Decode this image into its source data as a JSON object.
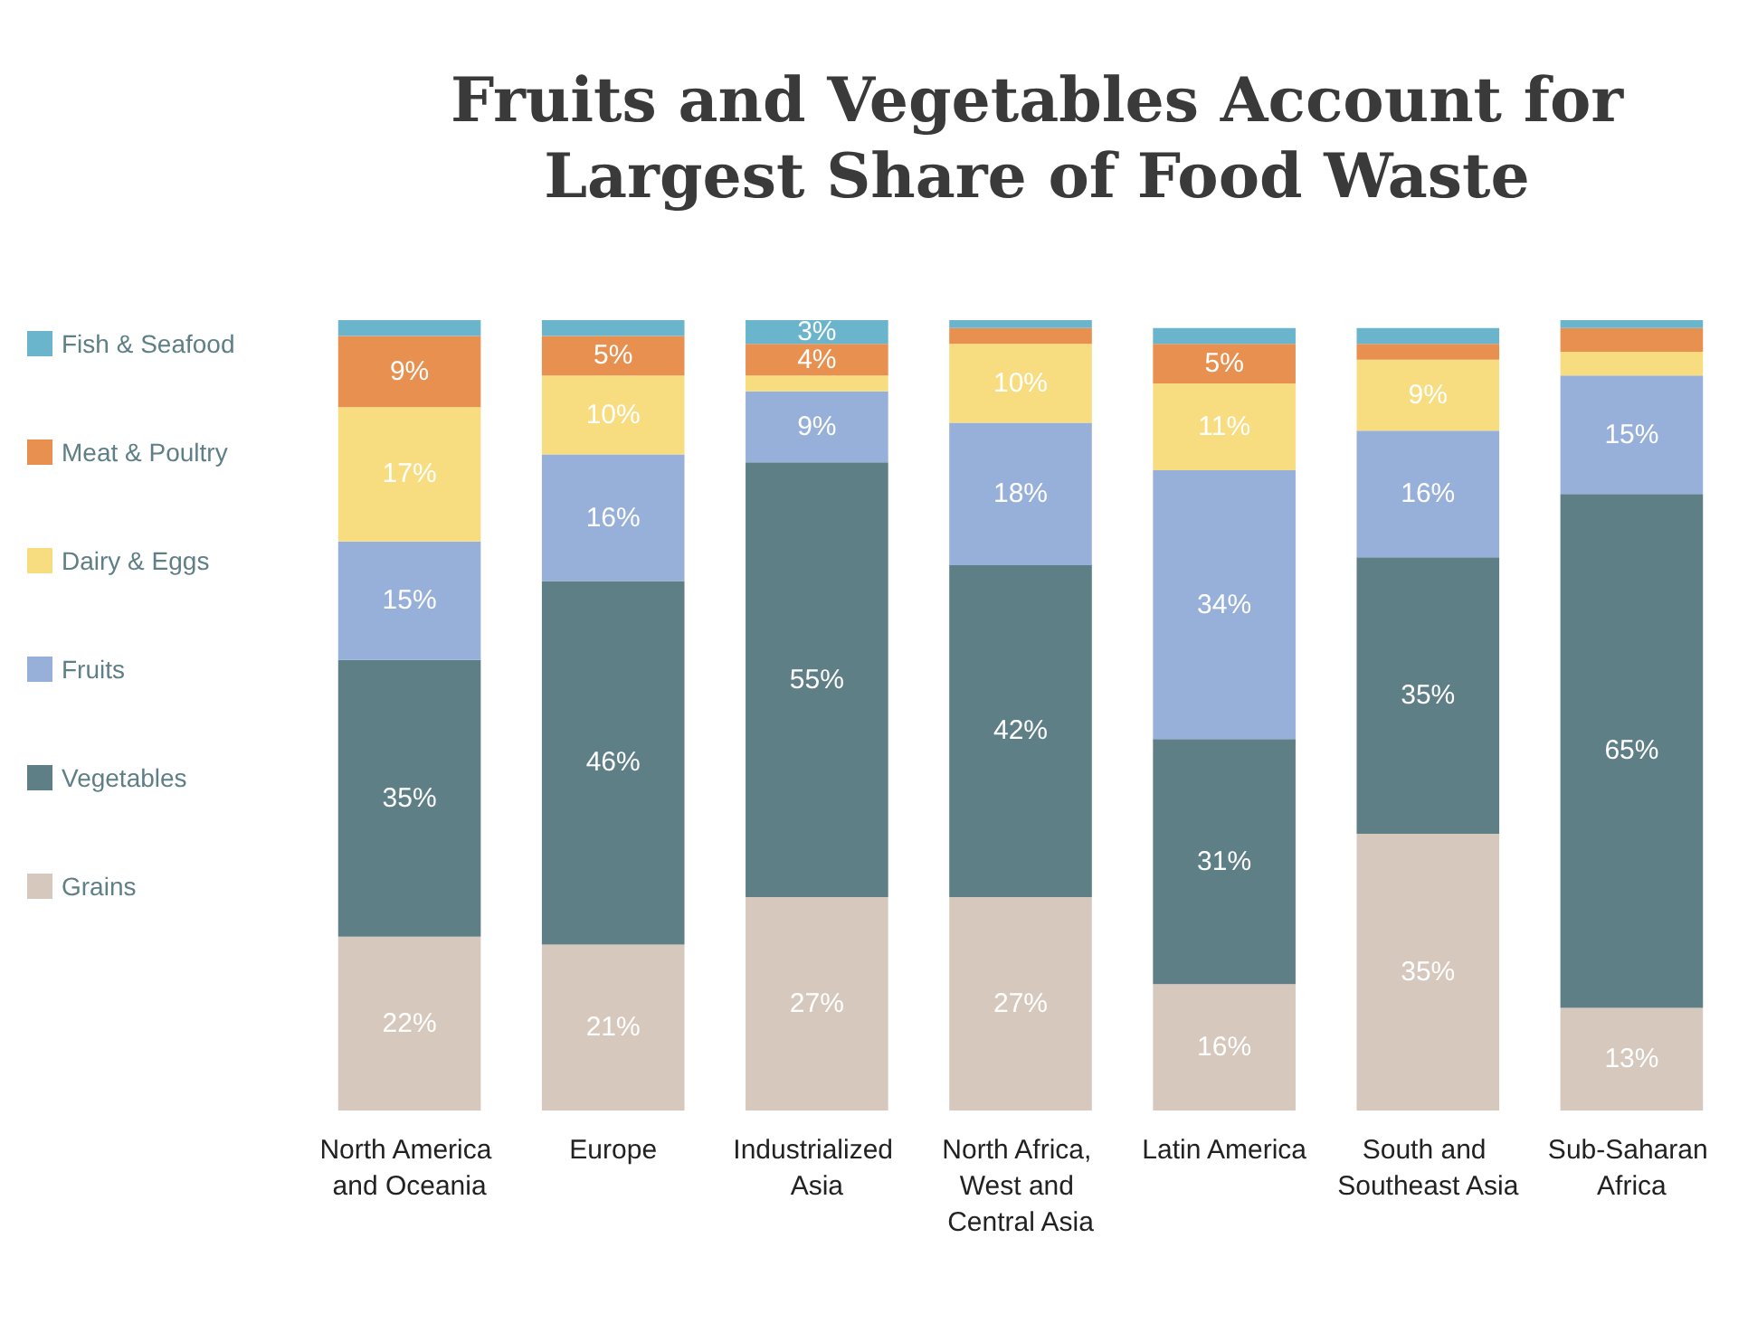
{
  "chart_data": {
    "type": "bar",
    "title": "Fruits and Vegetables Account for\nLargest Share of Food Waste",
    "stacked": true,
    "legend": "left",
    "tick_labels": "x",
    "ylim": [
      0,
      100
    ],
    "categories": [
      "North America and Oceania",
      "Europe",
      "Industrialized Asia",
      "North Africa, West and Central Asia",
      "Latin America",
      "South and Southeast Asia",
      "Sub-Saharan Africa"
    ],
    "series": [
      {
        "name": "Grains",
        "color": "#d6c8bc",
        "values": [
          22,
          21,
          27,
          27,
          16,
          35,
          13
        ],
        "value_labels": [
          "22%",
          "21%",
          "27%",
          "27%",
          "16%",
          "35%",
          "13%"
        ]
      },
      {
        "name": "Vegetables",
        "color": "#5e7f86",
        "values": [
          35,
          46,
          55,
          42,
          31,
          35,
          65
        ],
        "value_labels": [
          "35%",
          "46%",
          "55%",
          "42%",
          "31%",
          "35%",
          "65%"
        ]
      },
      {
        "name": "Fruits",
        "color": "#97b0da",
        "values": [
          15,
          16,
          9,
          18,
          34,
          16,
          15
        ],
        "value_labels": [
          "15%",
          "16%",
          "9%",
          "18%",
          "34%",
          "16%",
          "15%"
        ]
      },
      {
        "name": "Dairy & Eggs",
        "color": "#f8dc80",
        "values": [
          17,
          10,
          2,
          10,
          11,
          9,
          3
        ],
        "value_labels": [
          "17%",
          "10%",
          null,
          "10%",
          "11%",
          "9%",
          null
        ]
      },
      {
        "name": "Meat & Poultry",
        "color": "#e8904f",
        "values": [
          9,
          5,
          4,
          2,
          5,
          2,
          3
        ],
        "value_labels": [
          "9%",
          "5%",
          "4%",
          null,
          "5%",
          null,
          null
        ]
      },
      {
        "name": "Fish & Seafood",
        "color": "#6ab4cc",
        "values": [
          2,
          2,
          3,
          1,
          2,
          2,
          1
        ],
        "value_labels": [
          null,
          null,
          "3%",
          null,
          null,
          null,
          null
        ]
      }
    ]
  }
}
